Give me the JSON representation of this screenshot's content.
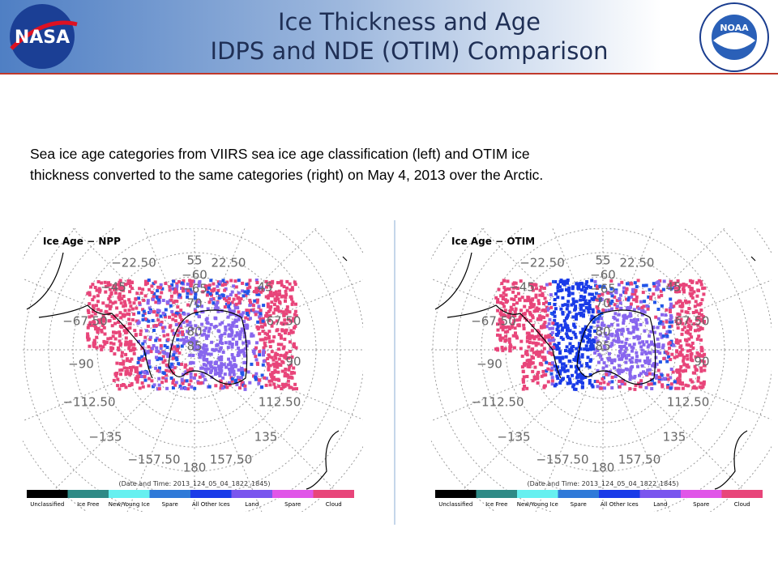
{
  "header": {
    "title": [
      "Ice Thickness and Age",
      "IDPS and NDE (OTIM) Comparison"
    ],
    "left_logo": "NASA",
    "right_logo": "NOAA"
  },
  "caption": [
    "Sea ice age categories from VIIRS sea ice age classification (left) and OTIM ice",
    "thickness converted to the same categories (right) on May 4, 2013 over the Arctic."
  ],
  "panels": [
    {
      "title": "Ice Age − NPP",
      "date": "(Date and Time: 2013_124_05_04_1822_1845)"
    },
    {
      "title": "Ice Age − OTIM",
      "date": "(Date and Time: 2013_124_05_04_1822_1845)"
    }
  ],
  "grid_labels": [
    "−22.50",
    "55",
    "22.50",
    "−60",
    "−45",
    "−65",
    "45",
    "70",
    "−67.50",
    "67.50",
    "80",
    "85",
    "−90",
    "90",
    "−112.50",
    "112.50",
    "−135",
    "135",
    "−157.50",
    "157.50",
    "180"
  ],
  "legend": [
    {
      "label": "Unclassified",
      "color": "#000000"
    },
    {
      "label": "Ice Free",
      "color": "#2e8a86"
    },
    {
      "label": "New/Young Ice",
      "color": "#66f0f0"
    },
    {
      "label": "Spare",
      "color": "#2f7ad8"
    },
    {
      "label": "All Other Ices",
      "color": "#1a3be8"
    },
    {
      "label": "Land",
      "color": "#7a55ee"
    },
    {
      "label": "Spare",
      "color": "#e055e8"
    },
    {
      "label": "Cloud",
      "color": "#e8457a"
    }
  ]
}
